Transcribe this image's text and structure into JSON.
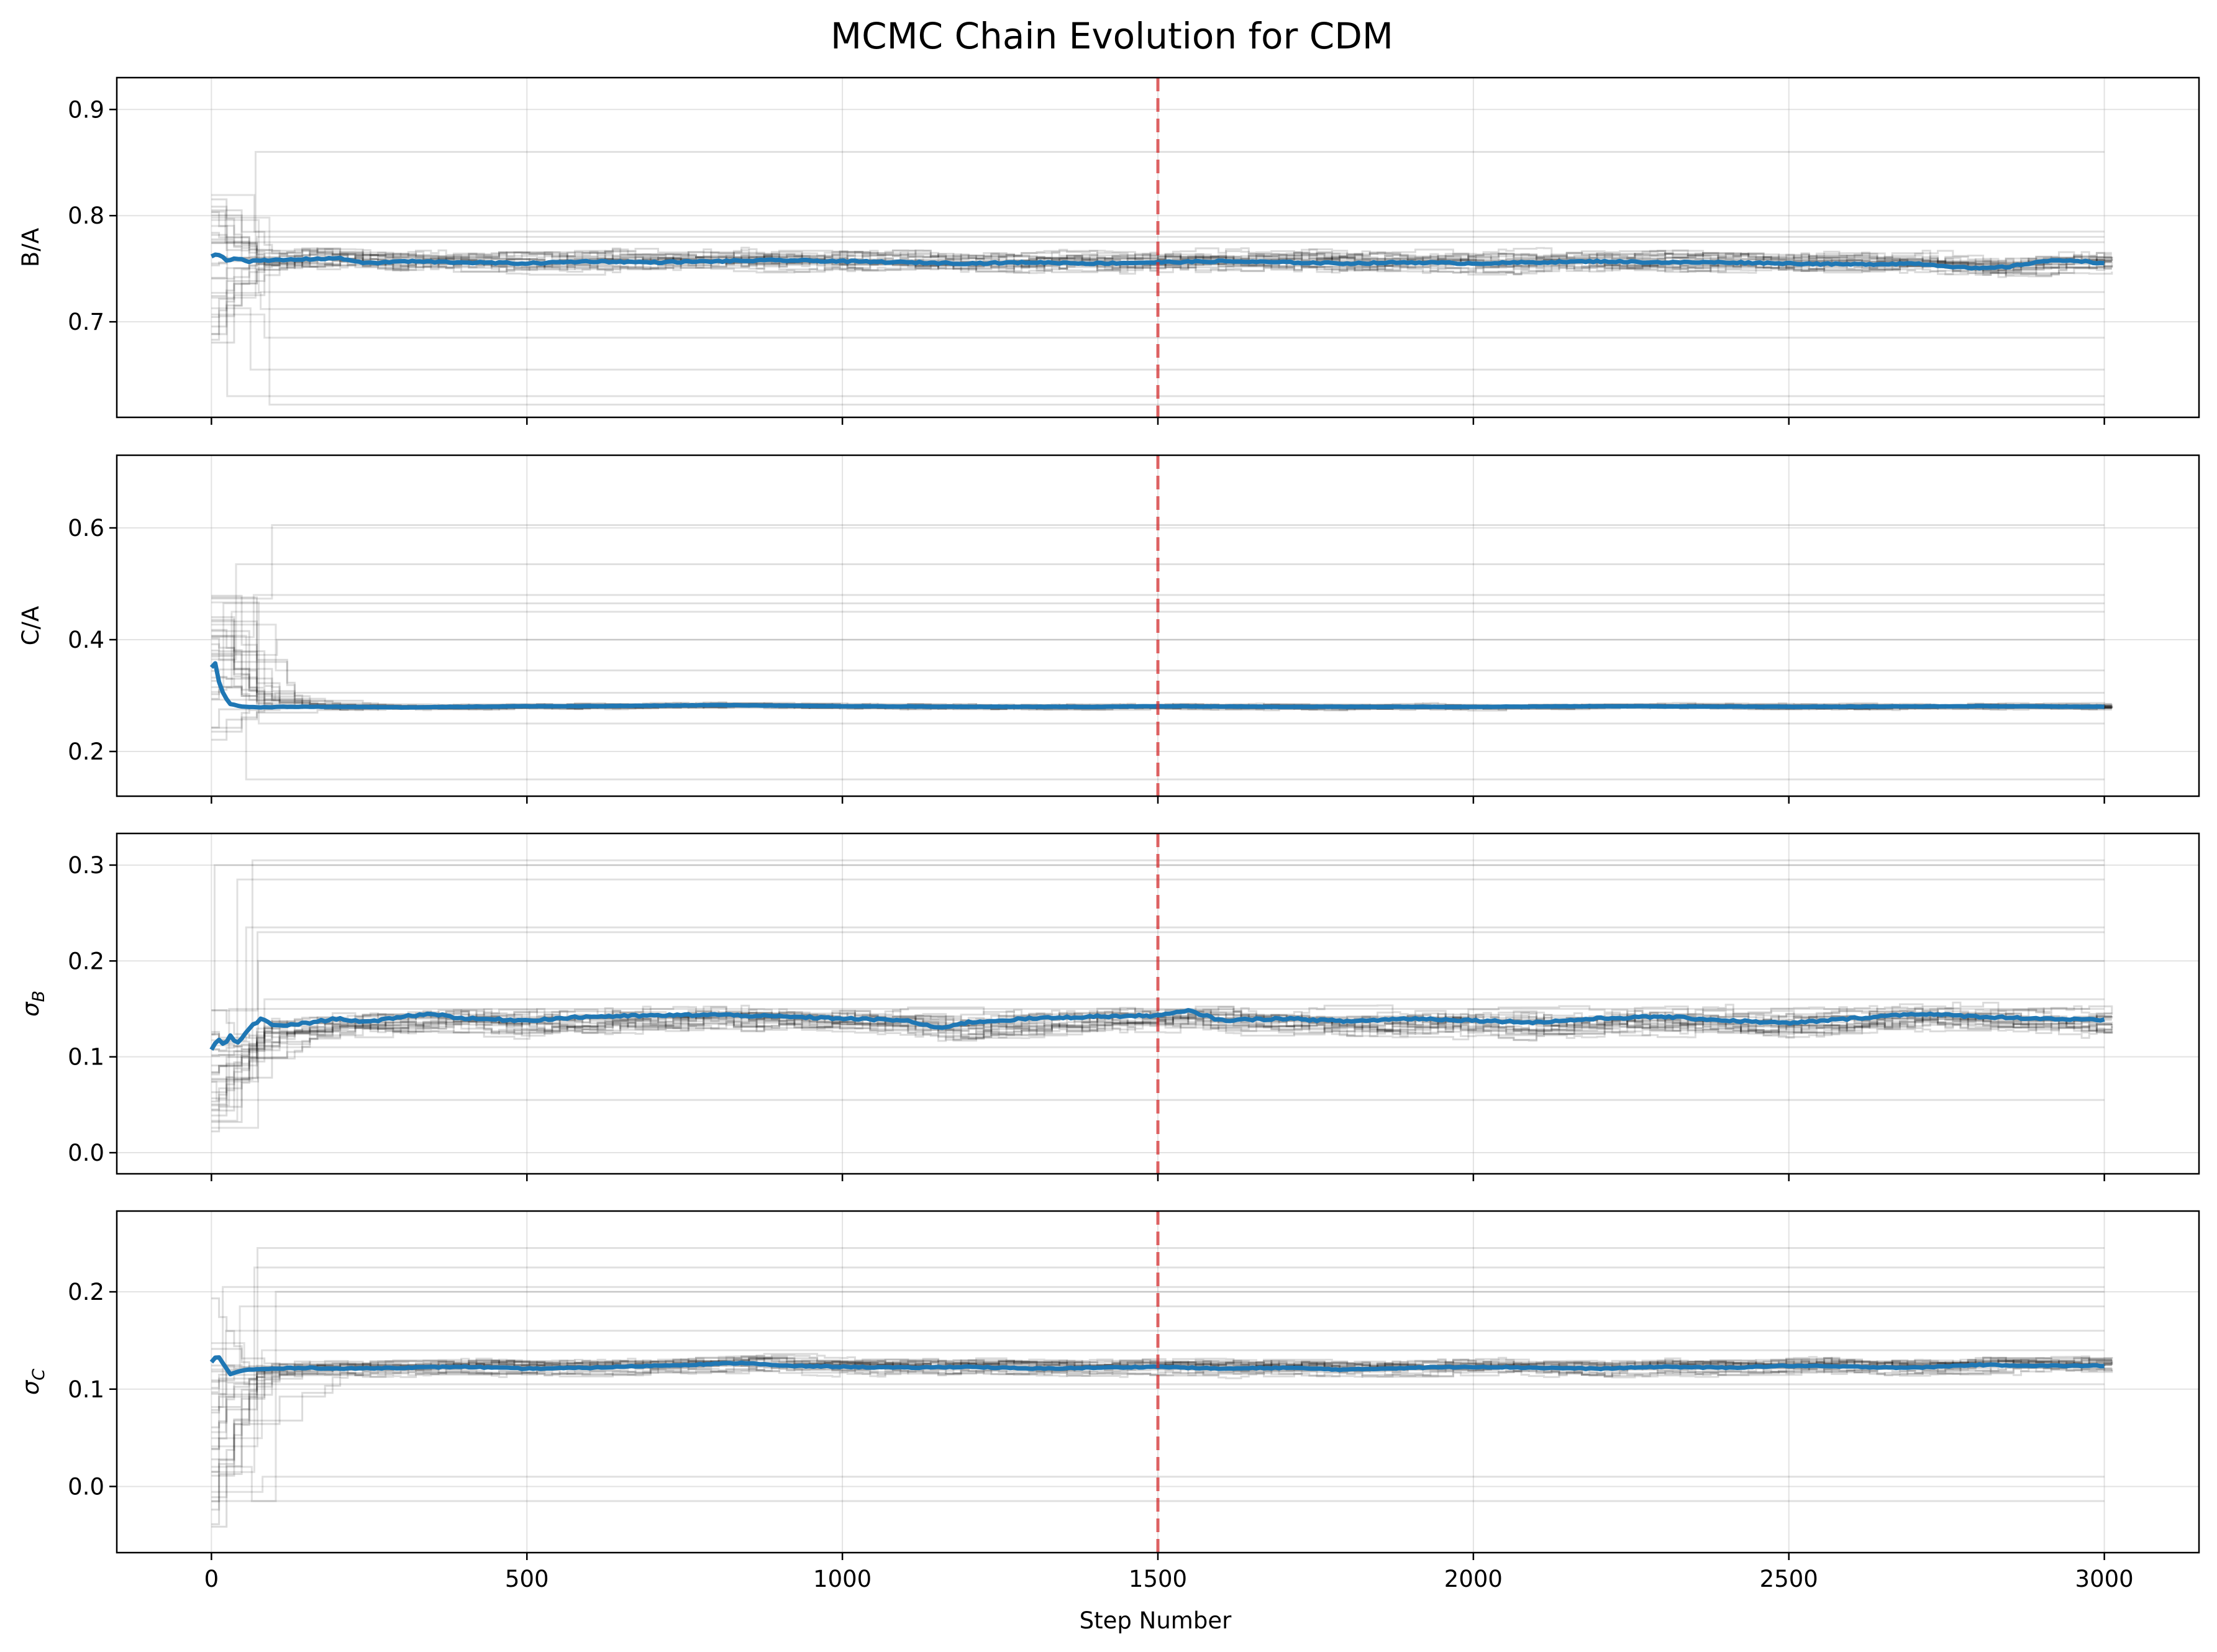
{
  "chart_data": {
    "type": "line",
    "title": "MCMC Chain Evolution for CDM",
    "xlabel": "Step Number",
    "xlim": [
      -150,
      3150
    ],
    "xticks": [
      0,
      500,
      1000,
      1500,
      2000,
      2500,
      3000
    ],
    "tick_labels_x": [
      "0",
      "500",
      "1000",
      "1500",
      "2000",
      "2500",
      "3000"
    ],
    "burn_in_step": 1500,
    "grid": true,
    "colors": {
      "mean": "#1f77b4",
      "walker": "#000000",
      "burn_in": "#d62728"
    },
    "panels": [
      {
        "ylabel": "B/A",
        "ylim": [
          0.61,
          0.93
        ],
        "yticks": [
          0.7,
          0.8,
          0.9
        ],
        "tick_labels": [
          "0.7",
          "0.8",
          "0.9"
        ],
        "mean_series": {
          "x": [
            0,
            10,
            25,
            40,
            60,
            100,
            150,
            200,
            250,
            300,
            400,
            500,
            600,
            700,
            800,
            900,
            1000,
            1100,
            1200,
            1300,
            1400,
            1500,
            1600,
            1700,
            1800,
            1900,
            2000,
            2100,
            2200,
            2300,
            2400,
            2500,
            2600,
            2700,
            2800,
            2850,
            2900,
            2950,
            3000
          ],
          "y": [
            0.762,
            0.764,
            0.758,
            0.76,
            0.757,
            0.758,
            0.759,
            0.76,
            0.755,
            0.757,
            0.756,
            0.755,
            0.757,
            0.756,
            0.757,
            0.758,
            0.757,
            0.756,
            0.755,
            0.756,
            0.755,
            0.756,
            0.757,
            0.756,
            0.755,
            0.756,
            0.755,
            0.756,
            0.757,
            0.756,
            0.756,
            0.755,
            0.754,
            0.755,
            0.75,
            0.752,
            0.757,
            0.758,
            0.755
          ]
        },
        "stuck_walkers": [
          0.86,
          0.785,
          0.78,
          0.775,
          0.728,
          0.712,
          0.685,
          0.655,
          0.63,
          0.622
        ],
        "center": 0.756,
        "spread": 0.008,
        "init_range": [
          0.68,
          0.82
        ]
      },
      {
        "ylabel": "C/A",
        "ylim": [
          0.12,
          0.73
        ],
        "yticks": [
          0.2,
          0.4,
          0.6
        ],
        "tick_labels": [
          "0.2",
          "0.4",
          "0.6"
        ],
        "mean_series": {
          "x": [
            0,
            5,
            10,
            20,
            30,
            50,
            80,
            120,
            200,
            300,
            400,
            500,
            600,
            700,
            800,
            900,
            1000,
            1200,
            1400,
            1500,
            1700,
            2000,
            2200,
            2500,
            2800,
            3000
          ],
          "y": [
            0.35,
            0.365,
            0.33,
            0.3,
            0.285,
            0.28,
            0.279,
            0.28,
            0.28,
            0.279,
            0.28,
            0.281,
            0.281,
            0.282,
            0.283,
            0.282,
            0.281,
            0.28,
            0.28,
            0.281,
            0.28,
            0.28,
            0.281,
            0.28,
            0.281,
            0.28
          ]
        },
        "stuck_walkers": [
          0.605,
          0.535,
          0.48,
          0.465,
          0.45,
          0.4,
          0.345,
          0.305,
          0.25,
          0.15
        ],
        "center": 0.28,
        "spread": 0.004,
        "init_range": [
          0.22,
          0.48
        ]
      },
      {
        "ylabel": "σ_B",
        "ylim": [
          -0.022,
          0.333
        ],
        "yticks": [
          0.0,
          0.1,
          0.2,
          0.3
        ],
        "tick_labels": [
          "0.0",
          "0.1",
          "0.2",
          "0.3"
        ],
        "mean_series": {
          "x": [
            0,
            10,
            20,
            30,
            40,
            60,
            80,
            100,
            150,
            200,
            250,
            300,
            350,
            400,
            500,
            600,
            700,
            800,
            900,
            1000,
            1100,
            1150,
            1200,
            1300,
            1400,
            1500,
            1550,
            1600,
            1700,
            1800,
            1900,
            2000,
            2100,
            2200,
            2300,
            2400,
            2500,
            2600,
            2700,
            2800,
            2900,
            3000
          ],
          "y": [
            0.108,
            0.118,
            0.112,
            0.122,
            0.113,
            0.13,
            0.14,
            0.132,
            0.135,
            0.14,
            0.136,
            0.142,
            0.145,
            0.14,
            0.138,
            0.142,
            0.143,
            0.144,
            0.142,
            0.14,
            0.138,
            0.13,
            0.136,
            0.14,
            0.142,
            0.143,
            0.148,
            0.138,
            0.14,
            0.137,
            0.14,
            0.138,
            0.136,
            0.14,
            0.142,
            0.138,
            0.135,
            0.14,
            0.145,
            0.142,
            0.14,
            0.138
          ]
        },
        "stuck_walkers": [
          0.305,
          0.3,
          0.285,
          0.235,
          0.23,
          0.2,
          0.16,
          0.15,
          0.11,
          0.055
        ],
        "center": 0.134,
        "spread": 0.012,
        "init_range": [
          0.0,
          0.15
        ]
      },
      {
        "ylabel": "σ_C",
        "ylim": [
          -0.068,
          0.283
        ],
        "yticks": [
          0.0,
          0.1,
          0.2
        ],
        "tick_labels": [
          "0.0",
          "0.1",
          "0.2"
        ],
        "mean_series": {
          "x": [
            0,
            10,
            20,
            30,
            40,
            60,
            100,
            150,
            200,
            300,
            400,
            500,
            600,
            700,
            800,
            850,
            900,
            1000,
            1100,
            1200,
            1300,
            1400,
            1500,
            1600,
            1700,
            1800,
            1900,
            2000,
            2100,
            2200,
            2300,
            2400,
            2500,
            2600,
            2700,
            2800,
            2900,
            3000
          ],
          "y": [
            0.128,
            0.135,
            0.125,
            0.115,
            0.118,
            0.12,
            0.121,
            0.122,
            0.121,
            0.122,
            0.123,
            0.121,
            0.122,
            0.124,
            0.126,
            0.127,
            0.124,
            0.123,
            0.122,
            0.123,
            0.121,
            0.122,
            0.123,
            0.121,
            0.122,
            0.12,
            0.122,
            0.123,
            0.122,
            0.121,
            0.123,
            0.122,
            0.124,
            0.123,
            0.122,
            0.125,
            0.124,
            0.124
          ]
        },
        "stuck_walkers": [
          0.245,
          0.225,
          0.205,
          0.2,
          0.185,
          0.16,
          0.14,
          0.105,
          0.01,
          -0.015
        ],
        "center": 0.122,
        "spread": 0.006,
        "init_range": [
          -0.05,
          0.2
        ]
      }
    ]
  }
}
